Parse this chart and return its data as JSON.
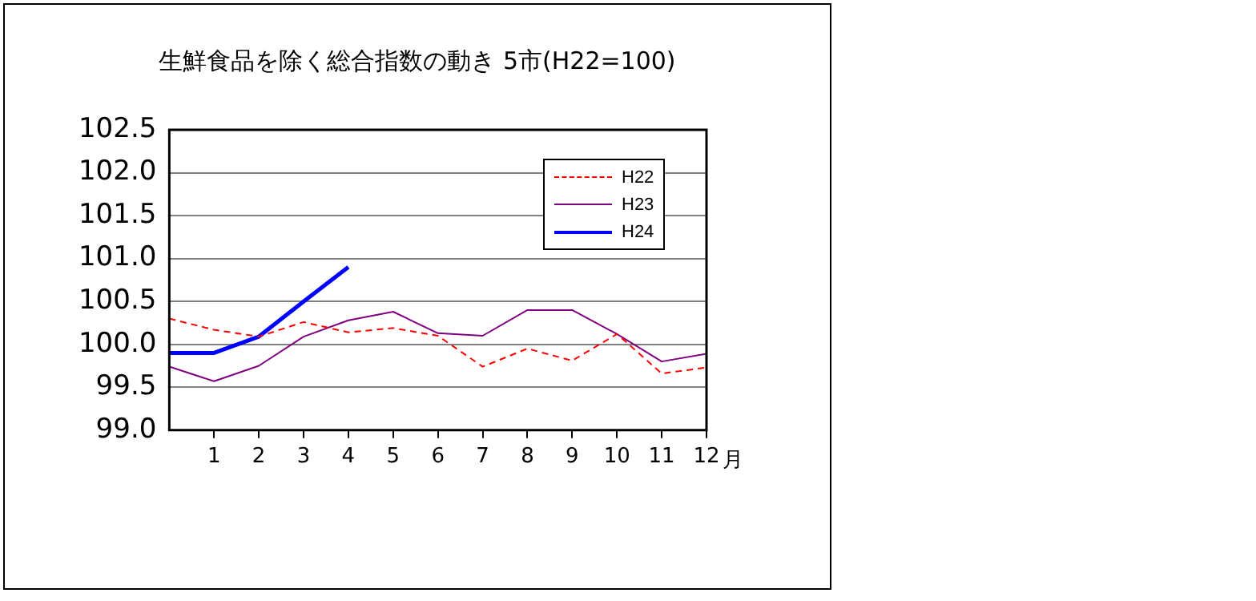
{
  "chart_data": {
    "type": "line",
    "title": "生鮮食品を除く総合指数の動き 5市(H22=100)",
    "xlabel": "月",
    "x": [
      0,
      1,
      2,
      3,
      4,
      5,
      6,
      7,
      8,
      9,
      10,
      11,
      12
    ],
    "series": [
      {
        "name": "H22",
        "color": "#ff0000",
        "line_style": "dashed",
        "values": [
          100.3,
          100.17,
          100.09,
          100.26,
          100.14,
          100.19,
          100.1,
          99.74,
          99.95,
          99.81,
          100.12,
          99.66,
          99.73
        ]
      },
      {
        "name": "H23",
        "color": "#800080",
        "line_style": "solid",
        "values": [
          99.74,
          99.57,
          99.75,
          100.09,
          100.28,
          100.38,
          100.13,
          100.1,
          100.4,
          100.4,
          100.12,
          99.8,
          99.89
        ]
      },
      {
        "name": "H24",
        "color": "#0000ff",
        "line_style": "solid",
        "values": [
          99.9,
          99.9,
          100.09,
          100.5,
          100.9,
          null,
          null,
          null,
          null,
          null,
          null,
          null,
          null
        ]
      }
    ],
    "xlim": [
      0,
      12
    ],
    "xticks": [
      1,
      2,
      3,
      4,
      5,
      6,
      7,
      8,
      9,
      10,
      11,
      12
    ],
    "ylim": [
      99,
      102.5
    ],
    "yticks": [
      {
        "value": 99,
        "label": "99.0"
      },
      99.5,
      {
        "value": 100,
        "label": "100.0"
      },
      100.5,
      {
        "value": 101,
        "label": "101.0"
      },
      101.5,
      {
        "value": 102,
        "label": "102.0"
      },
      102.5
    ],
    "grid": "y",
    "legend": "top right",
    "marker": "none"
  }
}
